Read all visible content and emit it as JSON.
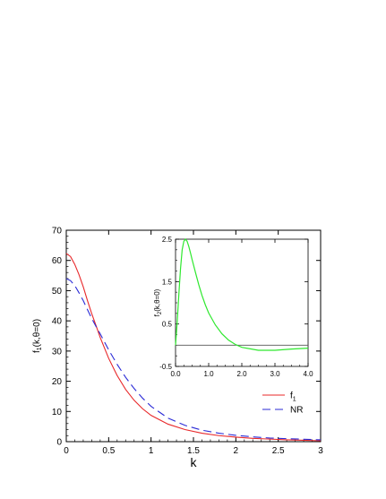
{
  "chart_data": [
    {
      "type": "line",
      "title": "",
      "xlabel": "k",
      "ylabel": "f₁(k,θ=0)",
      "ylabel_parts": {
        "main": "f",
        "sub": "1",
        "rest": "(k,θ=0)"
      },
      "xlim": [
        0,
        3
      ],
      "ylim": [
        0,
        70
      ],
      "xticks": [
        0,
        0.5,
        1,
        1.5,
        2,
        2.5,
        3
      ],
      "xtick_labels": [
        "0",
        "0.5",
        "1",
        "1.5",
        "2",
        "2.5",
        "3"
      ],
      "yticks": [
        0,
        10,
        20,
        30,
        40,
        50,
        60,
        70
      ],
      "ytick_labels": [
        "0",
        "10",
        "20",
        "30",
        "40",
        "50",
        "60",
        "70"
      ],
      "grid": false,
      "legend": "lower-right",
      "x": [
        0,
        0.05,
        0.1,
        0.15,
        0.2,
        0.25,
        0.3,
        0.35,
        0.4,
        0.5,
        0.6,
        0.7,
        0.8,
        0.9,
        1.0,
        1.2,
        1.4,
        1.6,
        1.8,
        2.0,
        2.2,
        2.4,
        2.6,
        2.8,
        3.0
      ],
      "series": [
        {
          "name": "f₁",
          "legend_parts": {
            "main": "f",
            "sub": "1"
          },
          "color": "#e8282a",
          "dash": "solid",
          "values": [
            62.3,
            61.3,
            58.7,
            55.3,
            51.3,
            46.7,
            42.4,
            38.5,
            34.5,
            27.6,
            21.9,
            17.3,
            13.7,
            10.9,
            8.7,
            5.8,
            4.0,
            2.8,
            2.0,
            1.5,
            1.1,
            0.85,
            0.6,
            0.45,
            0.3
          ]
        },
        {
          "name": "NR",
          "legend_parts": {
            "main": "NR",
            "sub": ""
          },
          "color": "#2a2ad6",
          "dash": "9,5",
          "values": [
            54.0,
            53.3,
            51.7,
            49.3,
            46.7,
            43.7,
            40.8,
            38.2,
            35.7,
            30.4,
            25.6,
            21.3,
            17.6,
            14.4,
            11.7,
            7.8,
            5.4,
            3.8,
            2.8,
            2.1,
            1.6,
            1.2,
            1.0,
            0.8,
            0.6
          ]
        }
      ]
    },
    {
      "type": "line",
      "title": "",
      "xlabel": "",
      "ylabel": "f₂(k,θ=0)",
      "ylabel_parts": {
        "main": "f",
        "sub": "2",
        "rest": "(k,θ=0)"
      },
      "xlim": [
        0,
        4
      ],
      "ylim": [
        -0.5,
        2.5
      ],
      "xticks": [
        0,
        1,
        2,
        3,
        4
      ],
      "xtick_labels": [
        "0.0",
        "1.0",
        "2.0",
        "3.0",
        "4.0"
      ],
      "yticks": [
        -0.5,
        0.5,
        1.5,
        2.5
      ],
      "ytick_labels": [
        "-0.5",
        "0.5",
        "1.5",
        "2.5"
      ],
      "grid": false,
      "reference_line_y": 0,
      "x": [
        0,
        0.05,
        0.1,
        0.15,
        0.2,
        0.25,
        0.3,
        0.35,
        0.4,
        0.45,
        0.5,
        0.6,
        0.7,
        0.8,
        0.9,
        1.0,
        1.2,
        1.4,
        1.6,
        1.8,
        2.0,
        2.5,
        3.0,
        3.5,
        4.0
      ],
      "series": [
        {
          "name": "",
          "color": "#2ee82e",
          "dash": "solid",
          "values": [
            0.0,
            0.55,
            1.2,
            1.8,
            2.25,
            2.45,
            2.5,
            2.45,
            2.33,
            2.18,
            2.02,
            1.72,
            1.43,
            1.17,
            0.95,
            0.76,
            0.48,
            0.27,
            0.12,
            0.02,
            -0.05,
            -0.12,
            -0.12,
            -0.09,
            -0.07
          ]
        }
      ]
    }
  ]
}
